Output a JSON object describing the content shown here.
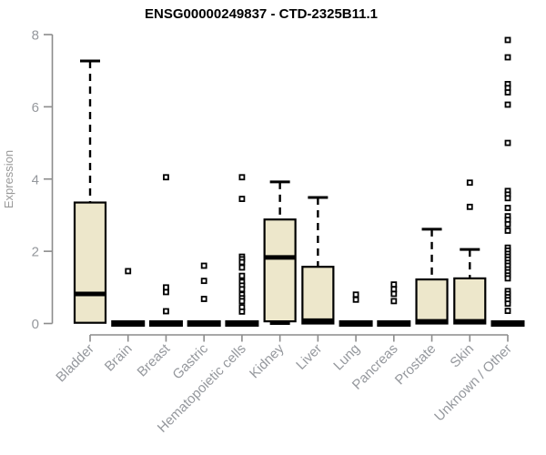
{
  "colors": {
    "background": "#ffffff",
    "box_fill": "#ede7cb",
    "box_stroke": "#000000",
    "median": "#000000",
    "whisker": "#000000",
    "outlier_fill": "#ffffff",
    "outlier_stroke": "#000000",
    "axis_line": "#8c8c8c",
    "tick_text": "#95989d",
    "title_text": "#000000"
  },
  "chart_data": {
    "type": "boxplot",
    "title": "ENSG00000249837 - CTD-2325B11.1",
    "ylabel": "Expression",
    "xlabel": "",
    "ylim": [
      0,
      8
    ],
    "yticks": [
      0,
      2,
      4,
      6,
      8
    ],
    "grid": false,
    "legend": "none",
    "categories": [
      "Bladder",
      "Brain",
      "Breast",
      "Gastric",
      "Hematopoietic cells",
      "Kidney",
      "Liver",
      "Lung",
      "Pancreas",
      "Prostate",
      "Skin",
      "Unknown / Other"
    ],
    "series": [
      {
        "name": "Bladder",
        "q1": 0.02,
        "median": 0.82,
        "q3": 3.35,
        "whisker_low": 0,
        "whisker_high": 7.27,
        "outliers": []
      },
      {
        "name": "Brain",
        "q1": 0,
        "median": 0,
        "q3": 0,
        "whisker_low": 0,
        "whisker_high": 0,
        "outliers": [
          1.45
        ]
      },
      {
        "name": "Breast",
        "q1": 0,
        "median": 0,
        "q3": 0,
        "whisker_low": 0,
        "whisker_high": 0,
        "outliers": [
          4.05,
          1.0,
          0.87,
          0.34
        ]
      },
      {
        "name": "Gastric",
        "q1": 0,
        "median": 0,
        "q3": 0,
        "whisker_low": 0,
        "whisker_high": 0,
        "outliers": [
          1.6,
          1.18,
          0.68
        ]
      },
      {
        "name": "Hematopoietic cells",
        "q1": 0,
        "median": 0,
        "q3": 0,
        "whisker_low": 0,
        "whisker_high": 0,
        "outliers": [
          4.05,
          3.45,
          1.85,
          1.78,
          1.7,
          1.55,
          1.32,
          1.15,
          1.05,
          0.95,
          0.8,
          0.7,
          0.62,
          0.45,
          0.33
        ]
      },
      {
        "name": "Kidney",
        "q1": 0.06,
        "median": 1.83,
        "q3": 2.88,
        "whisker_low": 0,
        "whisker_high": 3.92,
        "outliers": []
      },
      {
        "name": "Liver",
        "q1": 0,
        "median": 0.08,
        "q3": 1.57,
        "whisker_low": 0,
        "whisker_high": 3.49,
        "outliers": []
      },
      {
        "name": "Lung",
        "q1": 0,
        "median": 0,
        "q3": 0,
        "whisker_low": 0,
        "whisker_high": 0,
        "outliers": [
          0.8,
          0.66
        ]
      },
      {
        "name": "Pancreas",
        "q1": 0,
        "median": 0,
        "q3": 0,
        "whisker_low": 0,
        "whisker_high": 0,
        "outliers": [
          1.08,
          0.95,
          0.82,
          0.62
        ]
      },
      {
        "name": "Prostate",
        "q1": 0,
        "median": 0.06,
        "q3": 1.22,
        "whisker_low": 0,
        "whisker_high": 2.61,
        "outliers": []
      },
      {
        "name": "Skin",
        "q1": 0,
        "median": 0.06,
        "q3": 1.25,
        "whisker_low": 0,
        "whisker_high": 2.05,
        "outliers": [
          3.9,
          3.23
        ]
      },
      {
        "name": "Unknown / Other",
        "q1": 0,
        "median": 0,
        "q3": 0,
        "whisker_low": 0,
        "whisker_high": 0,
        "outliers": [
          7.85,
          7.37,
          6.63,
          6.52,
          6.4,
          6.06,
          5.0,
          3.67,
          3.57,
          3.47,
          3.2,
          2.97,
          2.87,
          2.75,
          2.57,
          2.1,
          2.02,
          1.93,
          1.85,
          1.77,
          1.68,
          1.6,
          1.5,
          1.42,
          1.33,
          1.25,
          0.9,
          0.82,
          0.73,
          0.65,
          0.55,
          0.35
        ]
      }
    ]
  }
}
